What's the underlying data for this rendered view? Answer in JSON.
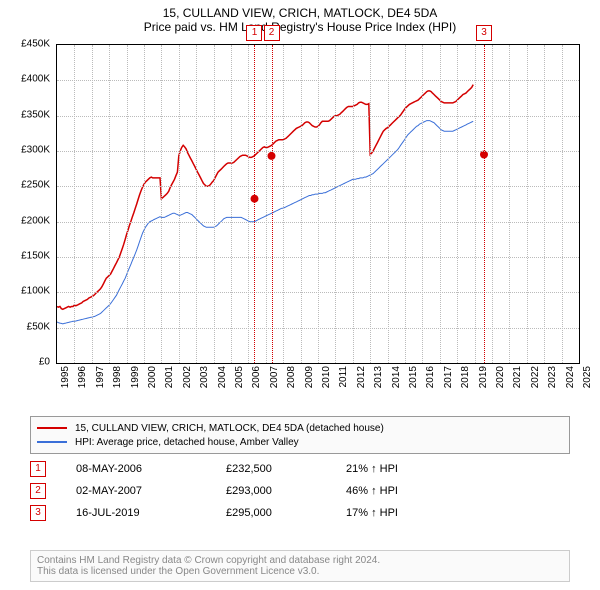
{
  "title": "15, CULLAND VIEW, CRICH, MATLOCK, DE4 5DA",
  "subtitle": "Price paid vs. HM Land Registry's House Price Index (HPI)",
  "chart": {
    "type": "line",
    "x_start_year": 1995,
    "x_end_year": 2025,
    "ylim": [
      0,
      450000
    ],
    "ytick_step": 50000,
    "ytick_labels": [
      "£0",
      "£50K",
      "£100K",
      "£150K",
      "£200K",
      "£250K",
      "£300K",
      "£350K",
      "£400K",
      "£450K"
    ],
    "background_color": "#ffffff",
    "grid_color": "#bbbbbb",
    "series": [
      {
        "name": "15, CULLAND VIEW, CRICH, MATLOCK, DE4 5DA (detached house)",
        "color": "#d40000",
        "line_width": 1.5,
        "values": [
          80000,
          79000,
          80000,
          77000,
          76000,
          77000,
          78000,
          79000,
          80000,
          79000,
          80000,
          80000,
          82000,
          81000,
          82000,
          83000,
          84000,
          85000,
          87000,
          88000,
          89000,
          90000,
          92000,
          93000,
          94000,
          95000,
          97000,
          99000,
          101000,
          103000,
          105000,
          108000,
          112000,
          116000,
          120000,
          122000,
          124000,
          126000,
          130000,
          134000,
          138000,
          142000,
          146000,
          150000,
          156000,
          162000,
          168000,
          175000,
          182000,
          188000,
          195000,
          201000,
          207000,
          213000,
          219000,
          225000,
          232000,
          238000,
          244000,
          249000,
          253000,
          256000,
          258000,
          260000,
          262000,
          263000,
          262000,
          262000,
          262000,
          262000,
          262000,
          262000,
          232500,
          234000,
          236000,
          238000,
          240000,
          243000,
          248000,
          252000,
          256000,
          260000,
          265000,
          270000,
          293000,
          300000,
          305000,
          308000,
          306000,
          303000,
          298000,
          294000,
          290000,
          286000,
          282000,
          278000,
          274000,
          270000,
          266000,
          262000,
          258000,
          254000,
          252000,
          250000,
          250000,
          251000,
          253000,
          256000,
          258000,
          262000,
          266000,
          270000,
          272000,
          274000,
          276000,
          278000,
          280000,
          282000,
          283000,
          283000,
          283000,
          283000,
          284000,
          286000,
          288000,
          290000,
          292000,
          293000,
          294000,
          294000,
          294000,
          293000,
          292000,
          291000,
          291000,
          292000,
          293000,
          295000,
          297000,
          299000,
          301000,
          303000,
          305000,
          306000,
          305000,
          305000,
          306000,
          307000,
          308000,
          310000,
          312000,
          314000,
          315000,
          316000,
          316000,
          316000,
          316000,
          317000,
          318000,
          320000,
          322000,
          324000,
          326000,
          328000,
          330000,
          332000,
          333000,
          334000,
          335000,
          336000,
          338000,
          340000,
          341000,
          341000,
          340000,
          338000,
          336000,
          335000,
          334000,
          334000,
          335000,
          337000,
          340000,
          342000,
          342000,
          342000,
          342000,
          342000,
          343000,
          345000,
          347000,
          349000,
          350000,
          350000,
          351000,
          352000,
          354000,
          356000,
          358000,
          360000,
          362000,
          363000,
          363000,
          363000,
          363000,
          364000,
          365000,
          366000,
          368000,
          369000,
          369000,
          368000,
          367000,
          366000,
          366000,
          367000,
          295000,
          297000,
          300000,
          304000,
          308000,
          312000,
          316000,
          320000,
          324000,
          328000,
          330000,
          332000,
          333000,
          335000,
          337000,
          339000,
          341000,
          343000,
          345000,
          347000,
          349000,
          351000,
          354000,
          357000,
          360000,
          362000,
          364000,
          366000,
          367000,
          368000,
          369000,
          370000,
          371000,
          372000,
          374000,
          376000,
          378000,
          380000,
          382000,
          384000,
          385000,
          385000,
          384000,
          382000,
          380000,
          378000,
          376000,
          374000,
          372000,
          370000,
          369000,
          368000,
          368000,
          368000,
          368000,
          368000,
          368000,
          368000,
          369000,
          370000,
          372000,
          374000,
          376000,
          378000,
          380000,
          381000,
          382000,
          384000,
          386000,
          388000,
          390000,
          394000
        ]
      },
      {
        "name": "HPI: Average price, detached house, Amber Valley",
        "color": "#3a6fd8",
        "line_width": 1,
        "values": [
          58000,
          57000,
          56500,
          56000,
          55500,
          56000,
          56500,
          57000,
          57500,
          58000,
          58500,
          59000,
          59000,
          59500,
          60000,
          60500,
          61000,
          61500,
          62000,
          62500,
          63000,
          63500,
          64000,
          64500,
          65000,
          65500,
          66000,
          67000,
          68000,
          69000,
          70000,
          72000,
          74000,
          76000,
          78000,
          80000,
          82000,
          84000,
          87000,
          90000,
          93000,
          96000,
          100000,
          104000,
          108000,
          112000,
          116000,
          120000,
          125000,
          130000,
          135000,
          140000,
          145000,
          150000,
          155000,
          160000,
          166000,
          172000,
          178000,
          184000,
          188000,
          192000,
          195000,
          198000,
          200000,
          201000,
          202000,
          203000,
          204000,
          205000,
          206000,
          207000,
          206000,
          206000,
          206000,
          207000,
          208000,
          209000,
          210000,
          211000,
          212000,
          212000,
          211000,
          210000,
          209000,
          209000,
          210000,
          211000,
          212000,
          213000,
          213000,
          212000,
          211000,
          210000,
          208000,
          206000,
          204000,
          202000,
          200000,
          198000,
          196000,
          194000,
          193000,
          192000,
          192000,
          192000,
          192000,
          192000,
          192000,
          193000,
          194000,
          196000,
          198000,
          200000,
          202000,
          204000,
          205000,
          206000,
          206000,
          206000,
          206000,
          206000,
          206000,
          206000,
          206000,
          206000,
          206000,
          206000,
          205000,
          204000,
          203000,
          202000,
          201000,
          200000,
          200000,
          200000,
          200000,
          201000,
          202000,
          203000,
          204000,
          205000,
          206000,
          207000,
          208000,
          209000,
          210000,
          211000,
          212000,
          213000,
          214000,
          215000,
          216000,
          217000,
          218000,
          219000,
          219000,
          220000,
          221000,
          222000,
          223000,
          224000,
          225000,
          226000,
          227000,
          228000,
          229000,
          230000,
          231000,
          232000,
          233000,
          234000,
          235000,
          236000,
          237000,
          237000,
          238000,
          238000,
          239000,
          239000,
          239000,
          240000,
          240000,
          240000,
          241000,
          241000,
          242000,
          243000,
          244000,
          245000,
          246000,
          247000,
          248000,
          249000,
          250000,
          251000,
          252000,
          253000,
          254000,
          255000,
          256000,
          257000,
          258000,
          259000,
          260000,
          260000,
          260000,
          261000,
          261000,
          262000,
          262000,
          262000,
          263000,
          263000,
          264000,
          265000,
          266000,
          267000,
          268000,
          270000,
          272000,
          274000,
          276000,
          278000,
          280000,
          282000,
          284000,
          286000,
          288000,
          290000,
          292000,
          294000,
          296000,
          298000,
          300000,
          302000,
          305000,
          308000,
          311000,
          314000,
          317000,
          320000,
          323000,
          325000,
          327000,
          329000,
          331000,
          333000,
          335000,
          336000,
          338000,
          339000,
          340000,
          341000,
          342000,
          343000,
          343000,
          343000,
          342000,
          341000,
          340000,
          338000,
          336000,
          334000,
          332000,
          330000,
          329000,
          328000,
          328000,
          328000,
          328000,
          328000,
          328000,
          328000,
          329000,
          330000,
          331000,
          332000,
          333000,
          334000,
          335000,
          336000,
          337000,
          338000,
          339000,
          340000,
          341000,
          342000
        ]
      }
    ],
    "events": [
      {
        "label": "1",
        "year_frac": 2006.35,
        "color": "#d40000",
        "price_value": 232500
      },
      {
        "label": "2",
        "year_frac": 2007.33,
        "color": "#d40000",
        "price_value": 293000
      },
      {
        "label": "3",
        "year_frac": 2019.54,
        "color": "#d40000",
        "price_value": 295000
      }
    ]
  },
  "legend": {
    "items": [
      {
        "color": "#d40000",
        "text": "15, CULLAND VIEW, CRICH, MATLOCK, DE4 5DA (detached house)"
      },
      {
        "color": "#3a6fd8",
        "text": "HPI: Average price, detached house, Amber Valley"
      }
    ]
  },
  "sales": [
    {
      "n": "1",
      "color": "#d40000",
      "date": "08-MAY-2006",
      "price": "£232,500",
      "delta": "21% ↑ HPI"
    },
    {
      "n": "2",
      "color": "#d40000",
      "date": "02-MAY-2007",
      "price": "£293,000",
      "delta": "46% ↑ HPI"
    },
    {
      "n": "3",
      "color": "#d40000",
      "date": "16-JUL-2019",
      "price": "£295,000",
      "delta": "17% ↑ HPI"
    }
  ],
  "footer_line1": "Contains HM Land Registry data © Crown copyright and database right 2024.",
  "footer_line2": "This data is licensed under the Open Government Licence v3.0."
}
